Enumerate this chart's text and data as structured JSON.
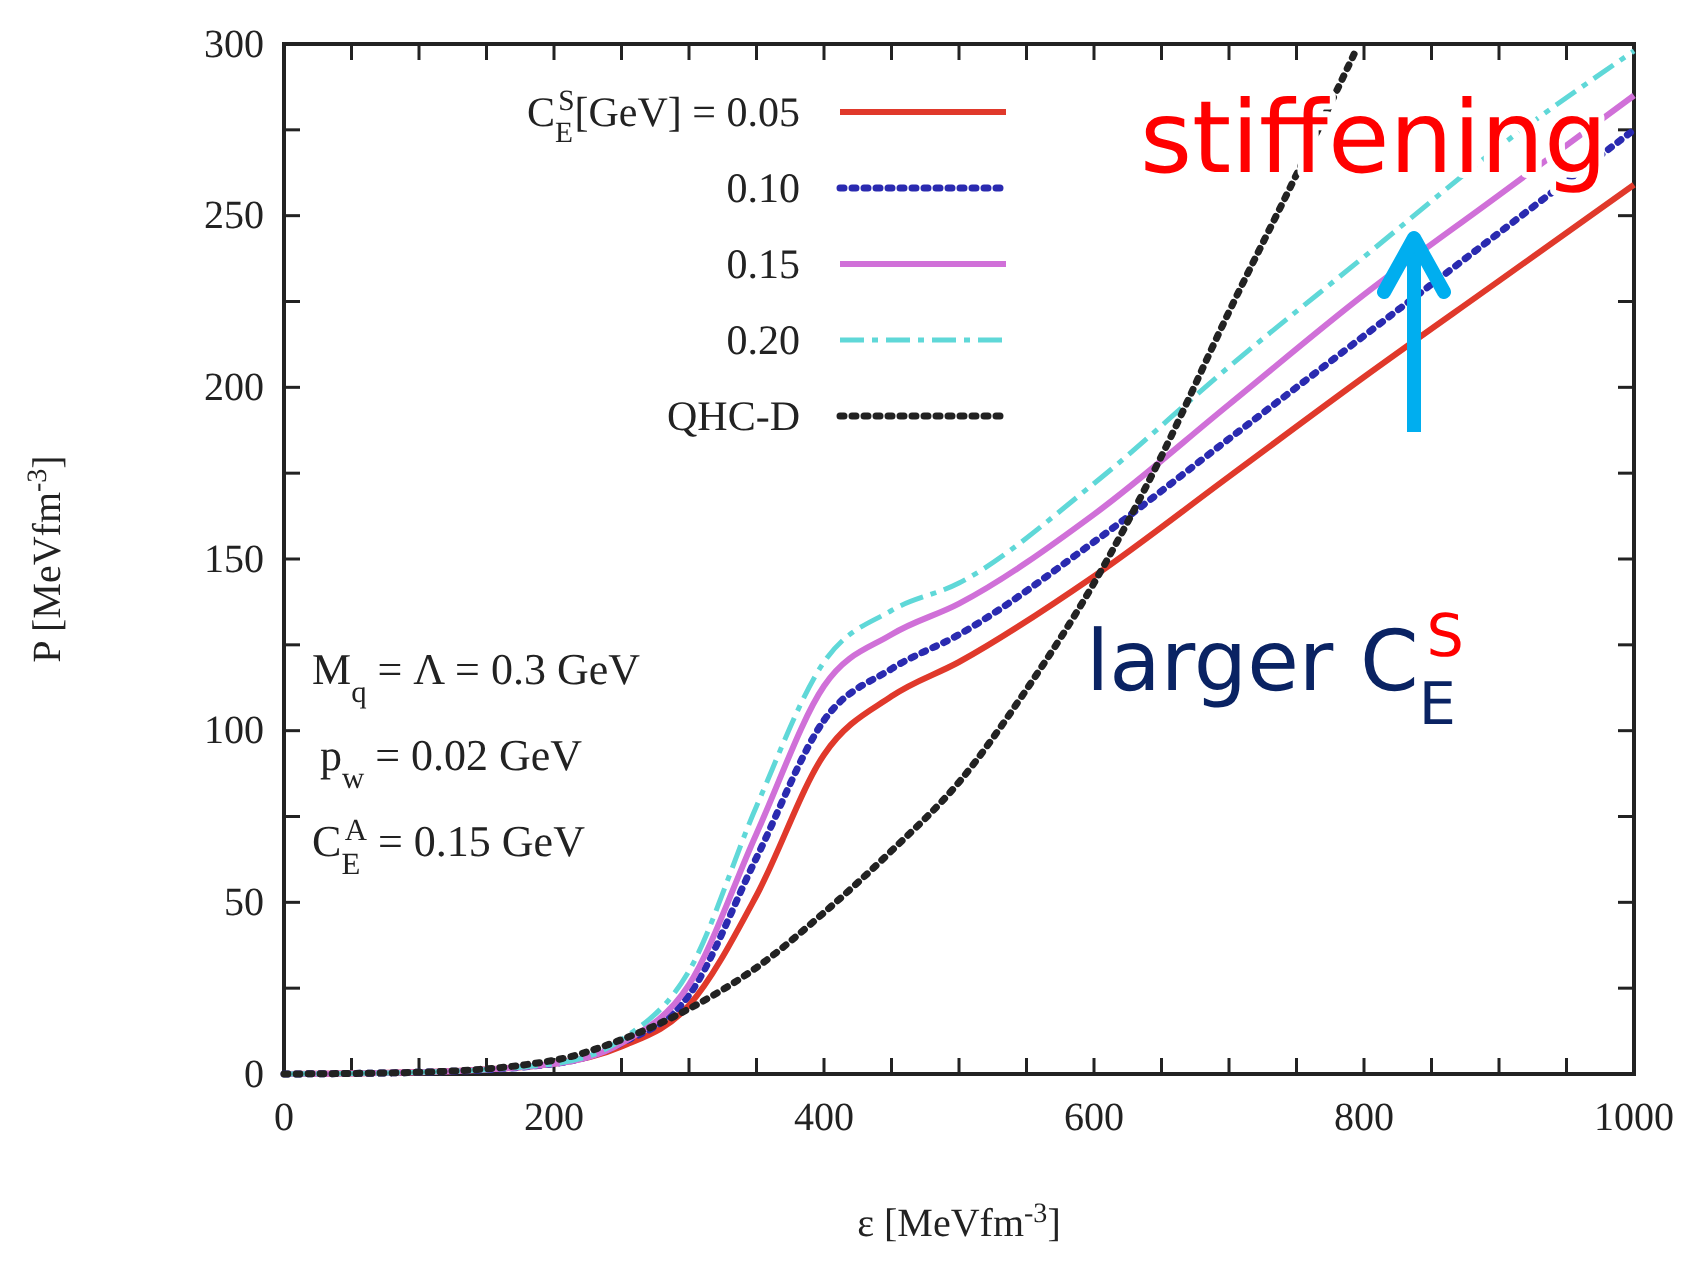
{
  "chart_data": {
    "type": "line",
    "xlabel": "ε [MeVfm$^{-3}$]",
    "ylabel": "P [MeVfm$^{-3}$]",
    "x": [
      0,
      100,
      200,
      250,
      300,
      350,
      400,
      450,
      500,
      600,
      700,
      800,
      900,
      1000
    ],
    "series": [
      {
        "name": "C$_{E}$$^{S}$[GeV] = 0.05",
        "color": "#e0392b",
        "line_style": "solid",
        "values": [
          0,
          0.5,
          3,
          8,
          20,
          52,
          93,
          110,
          120,
          145,
          174,
          203,
          231,
          259
        ]
      },
      {
        "name": "0.10",
        "color": "#2a2ab0",
        "line_style": "dotted",
        "values": [
          0,
          0.5,
          3,
          9,
          23,
          63,
          103,
          118,
          128,
          155,
          185,
          215,
          245,
          275
        ]
      },
      {
        "name": "0.15",
        "color": "#d070d8",
        "line_style": "solid",
        "values": [
          0,
          0.5,
          3,
          9,
          26,
          70,
          113,
          128,
          137,
          163,
          195,
          227,
          256,
          285
        ]
      },
      {
        "name": "0.20",
        "color": "#5fd8d8",
        "line_style": "dashed",
        "values": [
          0,
          0.5,
          3,
          10,
          30,
          78,
          120,
          135,
          143,
          172,
          206,
          238,
          270,
          298
        ]
      },
      {
        "name": "QHC-D",
        "color": "#222222",
        "line_style": "dotted",
        "x": [
          0,
          100,
          200,
          250,
          300,
          350,
          400,
          450,
          500,
          550,
          600,
          650,
          700,
          750,
          795
        ],
        "values": [
          0,
          0.5,
          4,
          10,
          19,
          31,
          47,
          65,
          85,
          112,
          143,
          180,
          222,
          262,
          299
        ]
      }
    ],
    "xlim": [
      0,
      1000
    ],
    "ylim": [
      0,
      300
    ],
    "xticks": [
      0,
      {
        "value": 50,
        "label": null
      },
      {
        "value": 100,
        "label": null
      },
      {
        "value": 150,
        "label": null
      },
      200,
      {
        "value": 250,
        "label": null
      },
      {
        "value": 300,
        "label": null
      },
      {
        "value": 350,
        "label": null
      },
      400,
      {
        "value": 450,
        "label": null
      },
      {
        "value": 500,
        "label": null
      },
      {
        "value": 550,
        "label": null
      },
      600,
      {
        "value": 650,
        "label": null
      },
      {
        "value": 700,
        "label": null
      },
      {
        "value": 750,
        "label": null
      },
      800,
      {
        "value": 850,
        "label": null
      },
      {
        "value": 900,
        "label": null
      },
      {
        "value": 950,
        "label": null
      },
      1000
    ],
    "yticks": [
      0,
      {
        "value": 25,
        "label": null
      },
      50,
      {
        "value": 75,
        "label": null
      },
      100,
      {
        "value": 125,
        "label": null
      },
      150,
      {
        "value": 175,
        "label": null
      },
      200,
      {
        "value": 225,
        "label": null
      },
      250,
      {
        "value": 275,
        "label": null
      },
      300
    ],
    "legend": "top left",
    "annotations": [
      "M$_{q}$ = Λ = 0.3 GeV",
      "p$_{w}$ = 0.02 GeV",
      "C$_{E}$$^{A}$ = 0.15 GeV",
      "stiffening",
      "larger C$_{E}$$^{S}$"
    ]
  }
}
